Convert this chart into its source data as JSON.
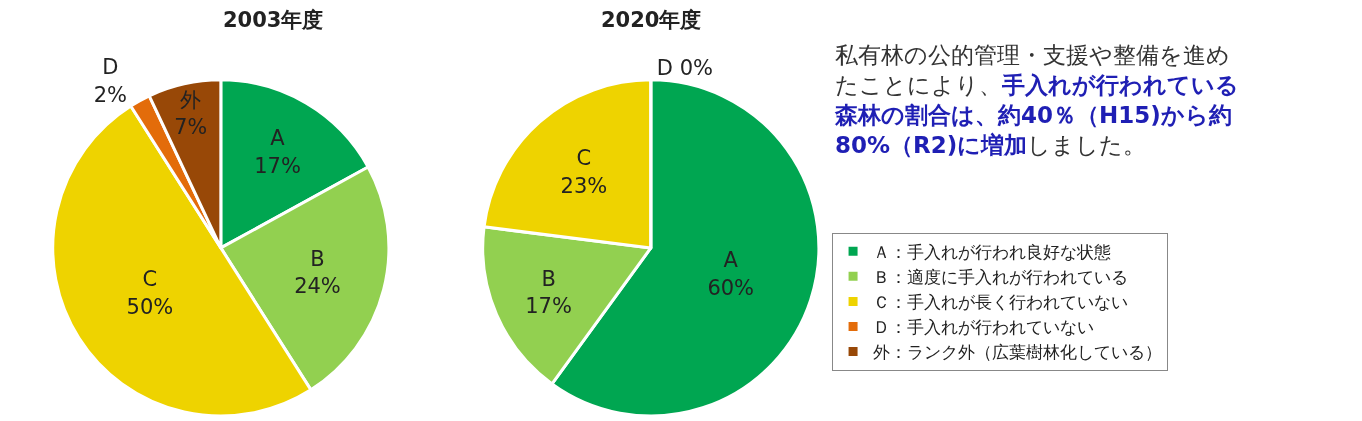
{
  "chart_data": [
    {
      "type": "pie",
      "title": "2003年度",
      "categories": [
        "Ａ：手入れが行われ良好な状態",
        "Ｂ：適度に手入れが行われている",
        "Ｃ：手入れが長く行われていない",
        "Ｄ：手入れが行われていない",
        "外：ランク外（広葉樹林化している）"
      ],
      "values": [
        17,
        24,
        50,
        2,
        7
      ],
      "colors": [
        "#00a651",
        "#92d050",
        "#eed300",
        "#e36c0a",
        "#984807"
      ],
      "value_labels": [
        "A\n17%",
        "B\n24%",
        "C\n50%",
        "D\n2%",
        "外\n7%"
      ],
      "legend": "right"
    },
    {
      "type": "pie",
      "title": "2020年度",
      "categories": [
        null,
        null,
        null,
        null
      ],
      "values": [
        60,
        17,
        23,
        0
      ],
      "colors": [
        "#00a651",
        "#92d050",
        "#eed300",
        "#e36c0a"
      ],
      "value_labels": [
        "A\n60%",
        "B\n17%",
        "C\n23%",
        "D 0%"
      ]
    },
    {
      "type": "other",
      "annotations": [
        "私有林の公的管理・支援や整備を進めたことにより、",
        "手入れが行われている森林の割合は、約40％（H15)から約80%（R2)に増加",
        "しました。"
      ]
    }
  ]
}
